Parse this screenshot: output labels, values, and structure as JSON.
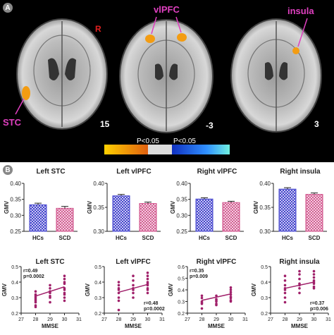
{
  "panel_a": {
    "badge": "A",
    "slices": [
      {
        "slice_number": "15",
        "orientation": "R",
        "label": "STC"
      },
      {
        "slice_number": "-3",
        "label": "vlPFC"
      },
      {
        "slice_number": "3",
        "label": "insula"
      }
    ],
    "colorbar": {
      "neg_label": "P<0.05",
      "pos_label": "P<0.05",
      "neg_color": "#f5a623",
      "pos_color": "#4fe0d0"
    }
  },
  "panel_b": {
    "badge": "B",
    "colors": {
      "hcs_fill": "#4a4ad0",
      "scd_fill": "#d0508a",
      "scatter": "#a0206a"
    },
    "bar_charts": [
      {
        "title": "Left STC",
        "ylabel": "GMV",
        "ylim": [
          0.25,
          0.4
        ],
        "yticks": [
          "0.25",
          "0.30",
          "0.35",
          "0.40"
        ],
        "categories": [
          "HCs",
          "SCD"
        ],
        "values": [
          0.333,
          0.322
        ],
        "errors": [
          0.005,
          0.006
        ]
      },
      {
        "title": "Left vlPFC",
        "ylabel": "GMV",
        "ylim": [
          0.3,
          0.4
        ],
        "yticks": [
          "0.30",
          "0.35",
          "0.40"
        ],
        "categories": [
          "HCs",
          "SCD"
        ],
        "values": [
          0.374,
          0.358
        ],
        "errors": [
          0.003,
          0.003
        ]
      },
      {
        "title": "Right vlPFC",
        "ylabel": "GMV",
        "ylim": [
          0.25,
          0.4
        ],
        "yticks": [
          "0.25",
          "0.30",
          "0.35",
          "0.40"
        ],
        "categories": [
          "HCs",
          "SCD"
        ],
        "values": [
          0.351,
          0.34
        ],
        "errors": [
          0.004,
          0.004
        ]
      },
      {
        "title": "Right insula",
        "ylabel": "GMV",
        "ylim": [
          0.3,
          0.4
        ],
        "yticks": [
          "0.30",
          "0.35",
          "0.40"
        ],
        "categories": [
          "HCs",
          "SCD"
        ],
        "values": [
          0.388,
          0.377
        ],
        "errors": [
          0.003,
          0.003
        ]
      }
    ],
    "scatter_charts": [
      {
        "title": "Left STC",
        "ylabel": "GMV",
        "xlabel": "MMSE",
        "xlim": [
          27,
          31
        ],
        "ylim": [
          0.2,
          0.5
        ],
        "xticks": [
          "27",
          "28",
          "29",
          "30",
          "31"
        ],
        "yticks": [
          "0.2",
          "0.3",
          "0.4",
          "0.5"
        ],
        "stat_r": "r=0.49",
        "stat_p": "p=0.0002",
        "stat_pos": "top-left",
        "points": [
          [
            28,
            0.25
          ],
          [
            28,
            0.28
          ],
          [
            28,
            0.3
          ],
          [
            28,
            0.32
          ],
          [
            28,
            0.27
          ],
          [
            28,
            0.34
          ],
          [
            28,
            0.29
          ],
          [
            28,
            0.31
          ],
          [
            28,
            0.24
          ],
          [
            29,
            0.27
          ],
          [
            29,
            0.3
          ],
          [
            29,
            0.33
          ],
          [
            29,
            0.36
          ],
          [
            29,
            0.38
          ],
          [
            29,
            0.31
          ],
          [
            29,
            0.34
          ],
          [
            30,
            0.3
          ],
          [
            30,
            0.33
          ],
          [
            30,
            0.36
          ],
          [
            30,
            0.39
          ],
          [
            30,
            0.42
          ],
          [
            30,
            0.44
          ],
          [
            30,
            0.35
          ],
          [
            30,
            0.32
          ],
          [
            30,
            0.28
          ],
          [
            30,
            0.4
          ]
        ],
        "fit": [
          [
            28,
            0.31
          ],
          [
            30,
            0.37
          ]
        ]
      },
      {
        "title": "Left vlPFC",
        "ylabel": "GMV",
        "xlabel": "MMSE",
        "xlim": [
          27,
          31
        ],
        "ylim": [
          0.2,
          0.5
        ],
        "xticks": [
          "27",
          "28",
          "29",
          "30",
          "31"
        ],
        "yticks": [
          "0.2",
          "0.3",
          "0.4",
          "0.5"
        ],
        "stat_r": "r=0.48",
        "stat_p": "p=0.0002",
        "stat_pos": "bottom-right",
        "points": [
          [
            28,
            0.22
          ],
          [
            28,
            0.3
          ],
          [
            28,
            0.33
          ],
          [
            28,
            0.36
          ],
          [
            28,
            0.38
          ],
          [
            28,
            0.4
          ],
          [
            28,
            0.35
          ],
          [
            28,
            0.28
          ],
          [
            29,
            0.3
          ],
          [
            29,
            0.33
          ],
          [
            29,
            0.36
          ],
          [
            29,
            0.38
          ],
          [
            29,
            0.41
          ],
          [
            29,
            0.44
          ],
          [
            29,
            0.35
          ],
          [
            30,
            0.33
          ],
          [
            30,
            0.36
          ],
          [
            30,
            0.38
          ],
          [
            30,
            0.4
          ],
          [
            30,
            0.42
          ],
          [
            30,
            0.44
          ],
          [
            30,
            0.46
          ],
          [
            30,
            0.39
          ],
          [
            30,
            0.35
          ]
        ],
        "fit": [
          [
            28,
            0.335
          ],
          [
            30,
            0.385
          ]
        ]
      },
      {
        "title": "Right vlPFC",
        "ylabel": "GMV",
        "xlabel": "MMSE",
        "xlim": [
          27,
          31
        ],
        "ylim": [
          0.2,
          0.6
        ],
        "xticks": [
          "27",
          "28",
          "29",
          "30",
          "31"
        ],
        "yticks": [
          "0.2",
          "0.3",
          "0.4",
          "0.5",
          "0.6"
        ],
        "stat_r": "r=0.35",
        "stat_p": "p=0.009",
        "stat_pos": "top-left",
        "points": [
          [
            28,
            0.24
          ],
          [
            28,
            0.28
          ],
          [
            28,
            0.3
          ],
          [
            28,
            0.33
          ],
          [
            28,
            0.35
          ],
          [
            28,
            0.29
          ],
          [
            29,
            0.27
          ],
          [
            29,
            0.3
          ],
          [
            29,
            0.32
          ],
          [
            29,
            0.35
          ],
          [
            29,
            0.31
          ],
          [
            29,
            0.28
          ],
          [
            30,
            0.3
          ],
          [
            30,
            0.33
          ],
          [
            30,
            0.36
          ],
          [
            30,
            0.38
          ],
          [
            30,
            0.4
          ],
          [
            30,
            0.42
          ],
          [
            30,
            0.34
          ],
          [
            30,
            0.31
          ]
        ],
        "fit": [
          [
            28,
            0.31
          ],
          [
            30,
            0.365
          ]
        ]
      },
      {
        "title": "Right insula",
        "ylabel": "GMV",
        "xlabel": "MMSE",
        "xlim": [
          27,
          31
        ],
        "ylim": [
          0.2,
          0.5
        ],
        "xticks": [
          "27",
          "28",
          "29",
          "30",
          "31"
        ],
        "yticks": [
          "0.2",
          "0.3",
          "0.4",
          "0.5"
        ],
        "stat_r": "r=0.37",
        "stat_p": "p=0.006",
        "stat_pos": "bottom-right",
        "points": [
          [
            28,
            0.27
          ],
          [
            28,
            0.3
          ],
          [
            28,
            0.33
          ],
          [
            28,
            0.36
          ],
          [
            28,
            0.38
          ],
          [
            28,
            0.41
          ],
          [
            28,
            0.44
          ],
          [
            28,
            0.35
          ],
          [
            29,
            0.33
          ],
          [
            29,
            0.36
          ],
          [
            29,
            0.39
          ],
          [
            29,
            0.42
          ],
          [
            29,
            0.45
          ],
          [
            29,
            0.47
          ],
          [
            29,
            0.38
          ],
          [
            30,
            0.36
          ],
          [
            30,
            0.39
          ],
          [
            30,
            0.41
          ],
          [
            30,
            0.43
          ],
          [
            30,
            0.45
          ],
          [
            30,
            0.47
          ],
          [
            30,
            0.4
          ],
          [
            30,
            0.37
          ]
        ],
        "fit": [
          [
            28,
            0.36
          ],
          [
            30,
            0.4
          ]
        ]
      }
    ]
  },
  "chart_data": [
    {
      "type": "bar",
      "title": "Left STC",
      "ylabel": "GMV",
      "categories": [
        "HCs",
        "SCD"
      ],
      "values": [
        0.333,
        0.322
      ],
      "ylim": [
        0.25,
        0.4
      ]
    },
    {
      "type": "bar",
      "title": "Left vlPFC",
      "ylabel": "GMV",
      "categories": [
        "HCs",
        "SCD"
      ],
      "values": [
        0.374,
        0.358
      ],
      "ylim": [
        0.3,
        0.4
      ]
    },
    {
      "type": "bar",
      "title": "Right vlPFC",
      "ylabel": "GMV",
      "categories": [
        "HCs",
        "SCD"
      ],
      "values": [
        0.351,
        0.34
      ],
      "ylim": [
        0.25,
        0.4
      ]
    },
    {
      "type": "bar",
      "title": "Right insula",
      "ylabel": "GMV",
      "categories": [
        "HCs",
        "SCD"
      ],
      "values": [
        0.388,
        0.377
      ],
      "ylim": [
        0.3,
        0.4
      ]
    },
    {
      "type": "scatter",
      "title": "Left STC",
      "xlabel": "MMSE",
      "ylabel": "GMV",
      "xlim": [
        27,
        31
      ],
      "ylim": [
        0.2,
        0.5
      ]
    },
    {
      "type": "scatter",
      "title": "Left vlPFC",
      "xlabel": "MMSE",
      "ylabel": "GMV",
      "xlim": [
        27,
        31
      ],
      "ylim": [
        0.2,
        0.5
      ]
    },
    {
      "type": "scatter",
      "title": "Right vlPFC",
      "xlabel": "MMSE",
      "ylabel": "GMV",
      "xlim": [
        27,
        31
      ],
      "ylim": [
        0.2,
        0.6
      ]
    },
    {
      "type": "scatter",
      "title": "Right insula",
      "xlabel": "MMSE",
      "ylabel": "GMV",
      "xlim": [
        27,
        31
      ],
      "ylim": [
        0.2,
        0.5
      ]
    }
  ]
}
